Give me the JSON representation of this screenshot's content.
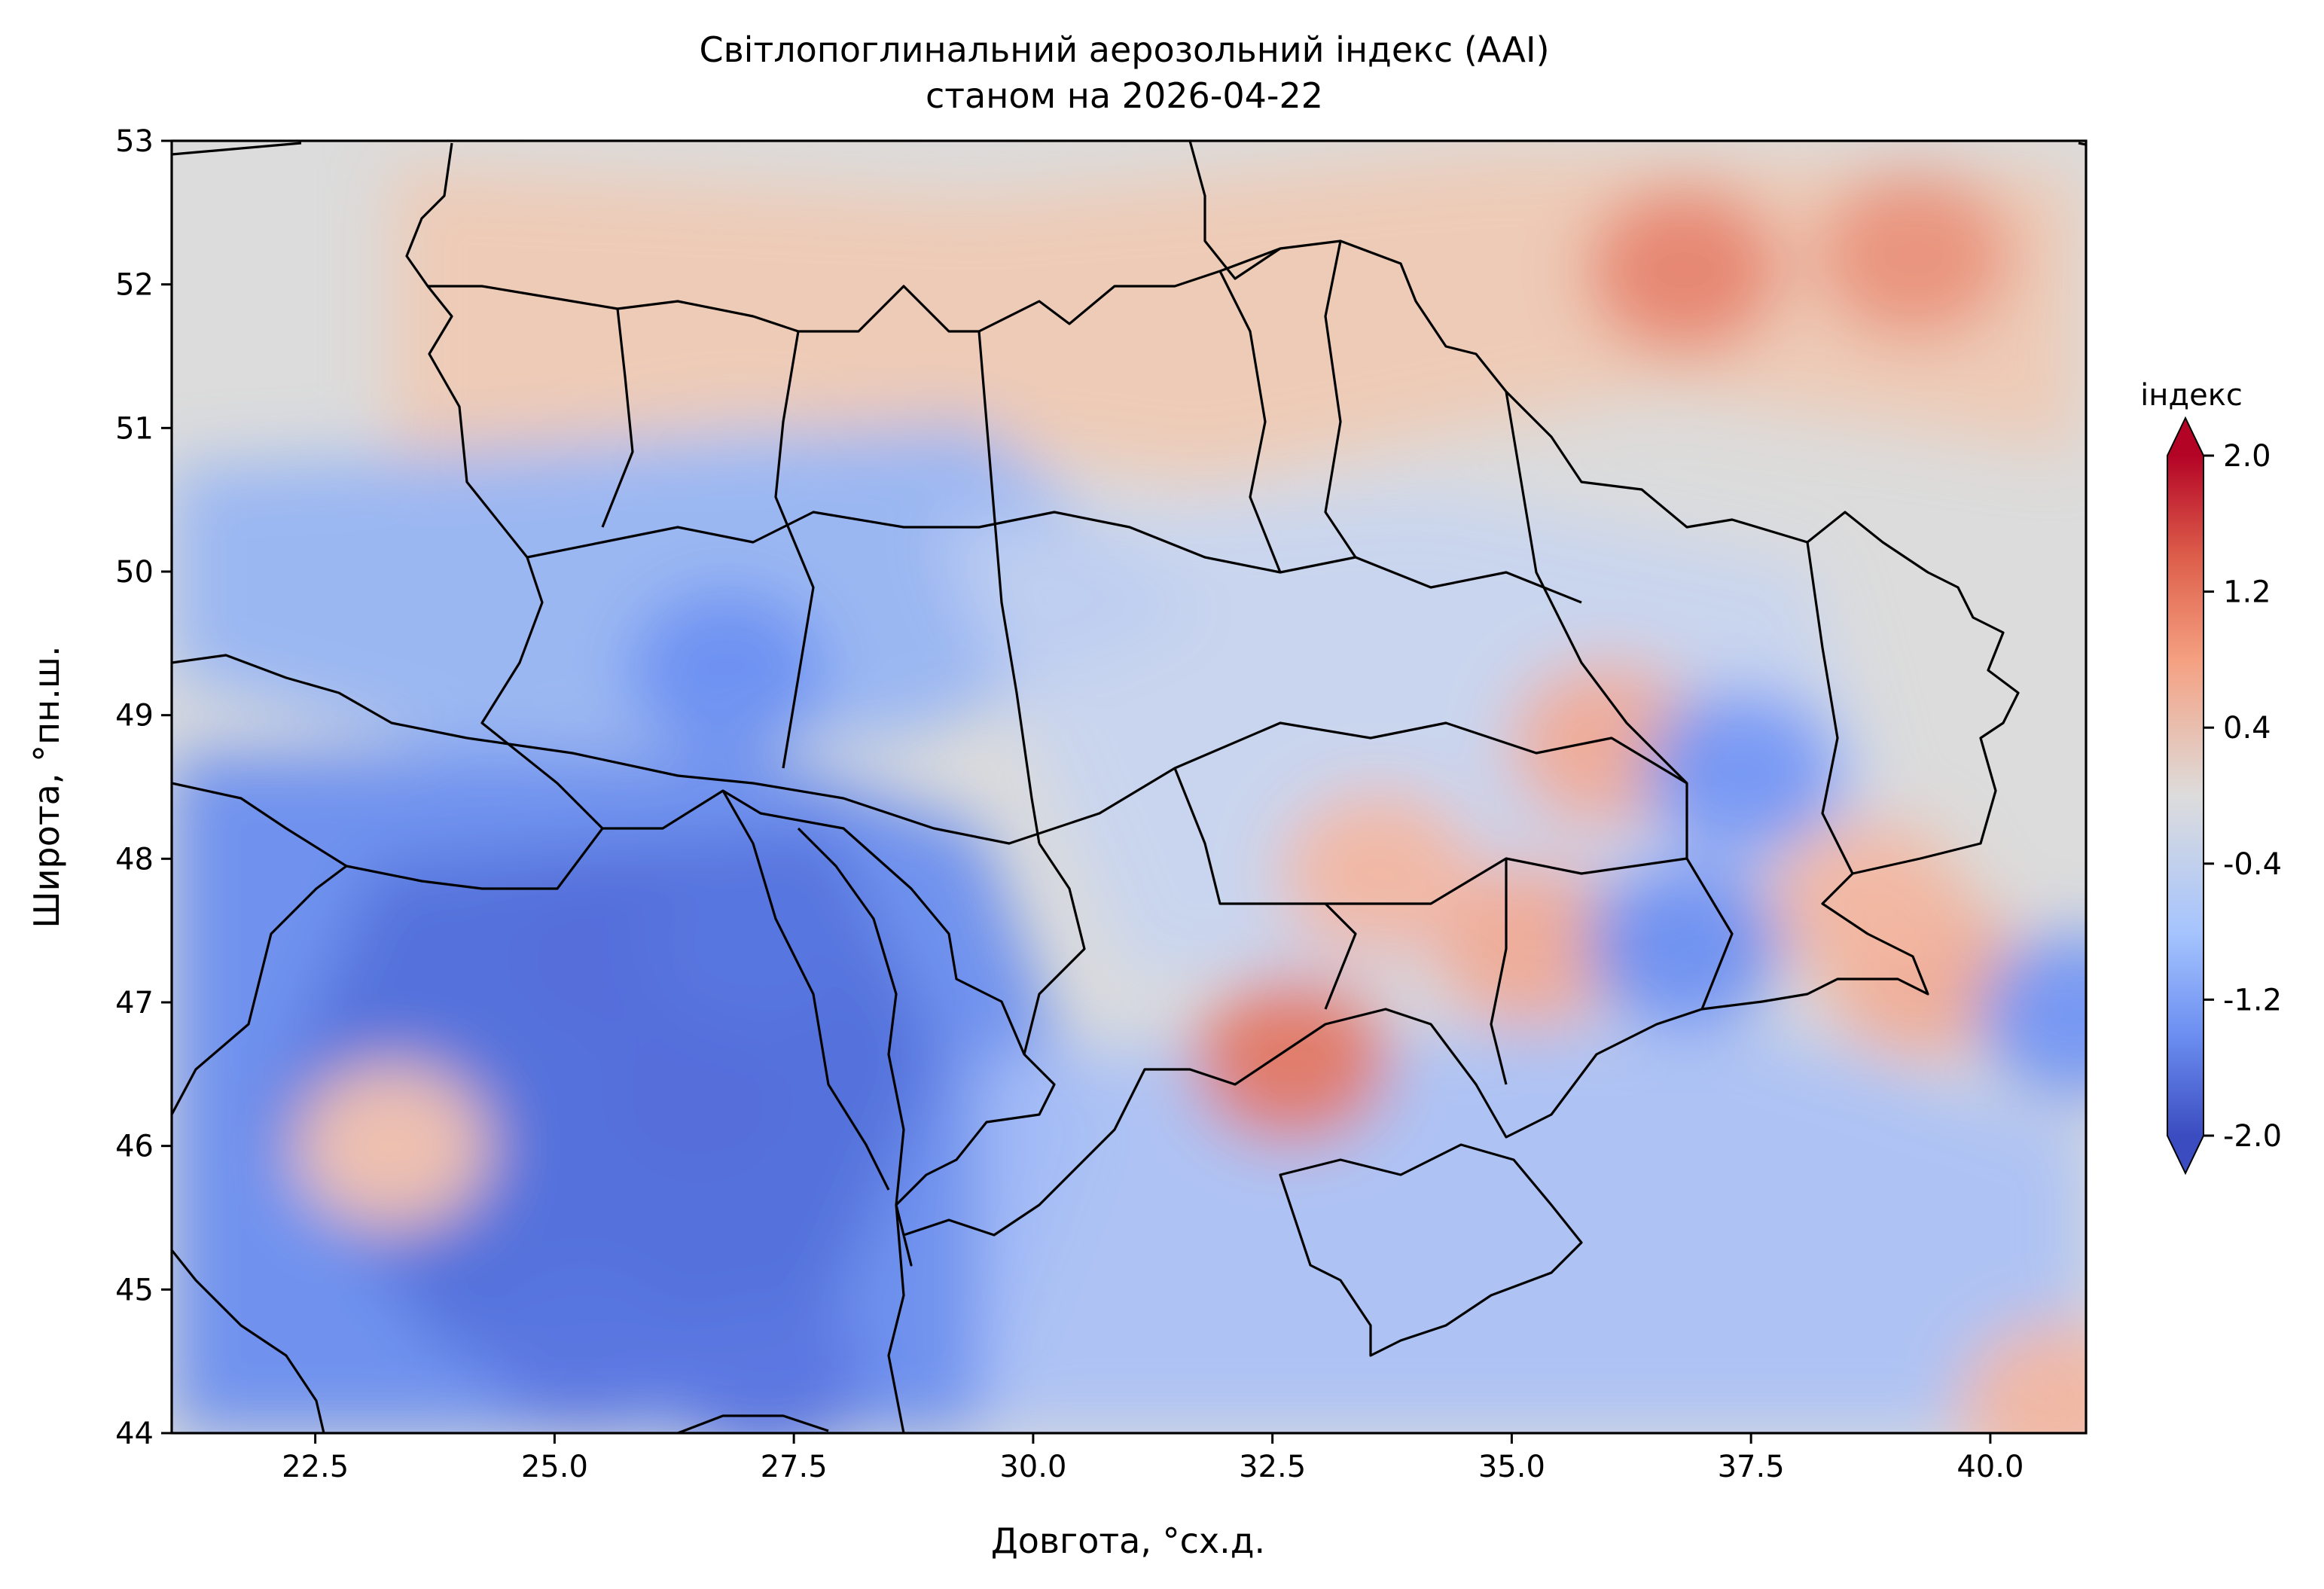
{
  "figure": {
    "title_line1": "Світлопоглинальний аерозольний індекс (AAI)",
    "title_line2": "станом на 2026-04-22",
    "xlabel": "Довгота, °сх.д.",
    "ylabel": "Широта, °пн.ш."
  },
  "colorbar": {
    "label": "індекс",
    "ticks": [
      "2.0",
      "1.2",
      "0.4",
      "-0.4",
      "-1.2",
      "-2.0"
    ],
    "vmin": -2.0,
    "vmax": 2.0,
    "colormap": "coolwarm",
    "extend": "both"
  },
  "chart_data": {
    "type": "heatmap",
    "x_ticks": [
      "22.5",
      "25.0",
      "27.5",
      "30.0",
      "32.5",
      "35.0",
      "37.5",
      "40.0"
    ],
    "y_ticks": [
      "53",
      "52",
      "51",
      "50",
      "49",
      "48",
      "47",
      "46",
      "45",
      "44"
    ],
    "xlim": [
      21.0,
      41.0
    ],
    "ylim": [
      44.0,
      53.0
    ],
    "value_range": [
      -2.0,
      2.0
    ],
    "grid": false,
    "hotspots": [
      {
        "lon": 32.7,
        "lat": 46.6,
        "value": 1.0
      },
      {
        "lon": 36.8,
        "lat": 52.1,
        "value": 0.9
      },
      {
        "lon": 39.2,
        "lat": 52.2,
        "value": 0.8
      },
      {
        "lon": 35.2,
        "lat": 47.4,
        "value": 0.6
      },
      {
        "lon": 36.0,
        "lat": 48.8,
        "value": 0.6
      },
      {
        "lon": 39.3,
        "lat": 47.2,
        "value": 0.6
      },
      {
        "lon": 38.7,
        "lat": 47.7,
        "value": 0.5
      },
      {
        "lon": 33.6,
        "lat": 47.9,
        "value": 0.5
      },
      {
        "lon": 23.3,
        "lat": 46.0,
        "value": 0.4
      },
      {
        "lon": 40.7,
        "lat": 44.2,
        "value": 0.5
      }
    ],
    "coldspots": [
      {
        "lon": 25.5,
        "lat": 47.3,
        "value": -1.6
      },
      {
        "lon": 26.5,
        "lat": 46.3,
        "value": -1.6
      },
      {
        "lon": 27.0,
        "lat": 47.4,
        "value": -1.5
      },
      {
        "lon": 25.3,
        "lat": 44.6,
        "value": -1.5
      },
      {
        "lon": 27.2,
        "lat": 44.4,
        "value": -1.5
      },
      {
        "lon": 36.8,
        "lat": 47.4,
        "value": -1.2
      },
      {
        "lon": 37.4,
        "lat": 48.6,
        "value": -1.1
      },
      {
        "lon": 40.9,
        "lat": 46.9,
        "value": -1.1
      },
      {
        "lon": 26.8,
        "lat": 49.3,
        "value": -1.2
      }
    ]
  }
}
